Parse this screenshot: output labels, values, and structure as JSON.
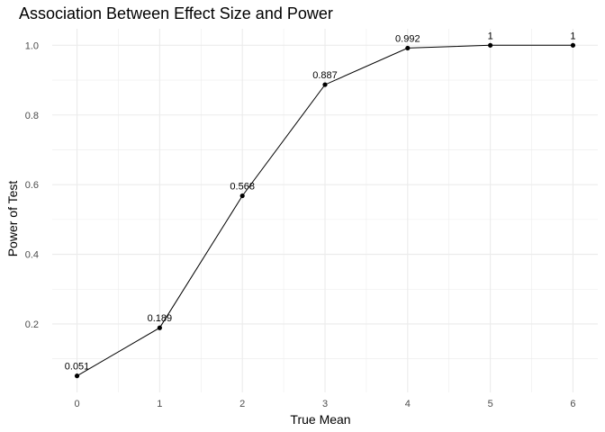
{
  "chart_data": {
    "type": "line",
    "title": "Association Between Effect Size and Power",
    "xlabel": "True Mean",
    "ylabel": "Power of Test",
    "x": [
      0,
      1,
      2,
      3,
      4,
      5,
      6
    ],
    "series": [
      {
        "values": [
          0.051,
          0.189,
          0.568,
          0.887,
          0.992,
          1,
          1
        ]
      }
    ],
    "data_labels": [
      "0.051",
      "0.189",
      "0.568",
      "0.887",
      "0.992",
      "1",
      "1"
    ],
    "x_ticks": [
      "0",
      "1",
      "2",
      "3",
      "4",
      "5",
      "6"
    ],
    "y_ticks": [
      "0.2",
      "0.4",
      "0.6",
      "0.8",
      "1.0"
    ],
    "xlim": [
      -0.3,
      6.3
    ],
    "ylim": [
      0.0036,
      1.0474
    ],
    "grid": true,
    "legend": "none",
    "colors": {
      "line": "#000000",
      "point": "#000000",
      "grid": "#ebebeb"
    }
  }
}
